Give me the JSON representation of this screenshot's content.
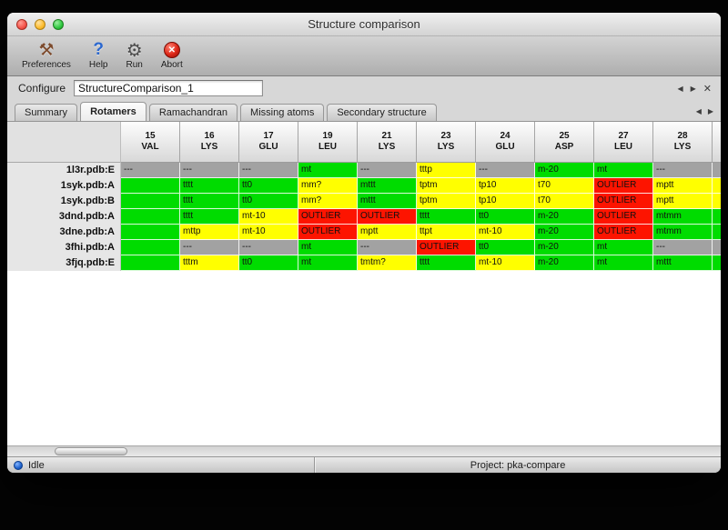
{
  "window": {
    "title": "Structure comparison"
  },
  "toolbar": {
    "items": [
      {
        "label": "Preferences",
        "glyph": "⚒"
      },
      {
        "label": "Help",
        "glyph": "?"
      },
      {
        "label": "Run",
        "glyph": "⚙"
      },
      {
        "label": "Abort",
        "glyph": "✕"
      }
    ]
  },
  "configure": {
    "label": "Configure",
    "value": "StructureComparison_1"
  },
  "nav": {
    "prev": "◀",
    "next": "▶",
    "close": "✕"
  },
  "tabs": {
    "active": "Rotamers",
    "items": [
      "Summary",
      "Rotamers",
      "Ramachandran",
      "Missing atoms",
      "Secondary structure"
    ]
  },
  "colors": {
    "green": "#00dc00",
    "yellow": "#ffff00",
    "red": "#fd1400",
    "gray": "#a2a2a2"
  },
  "table": {
    "columns": [
      {
        "num": "15",
        "res": "VAL"
      },
      {
        "num": "16",
        "res": "LYS"
      },
      {
        "num": "17",
        "res": "GLU"
      },
      {
        "num": "19",
        "res": "LEU"
      },
      {
        "num": "21",
        "res": "LYS"
      },
      {
        "num": "23",
        "res": "LYS"
      },
      {
        "num": "24",
        "res": "GLU"
      },
      {
        "num": "25",
        "res": "ASP"
      },
      {
        "num": "27",
        "res": "LEU"
      },
      {
        "num": "28",
        "res": "LYS"
      },
      {
        "num": "",
        "res": ""
      }
    ],
    "rows": [
      {
        "label": "1l3r.pdb:E",
        "cells": [
          {
            "t": "---",
            "c": "gray"
          },
          {
            "t": "---",
            "c": "gray"
          },
          {
            "t": "---",
            "c": "gray"
          },
          {
            "t": "mt",
            "c": "green"
          },
          {
            "t": "---",
            "c": "gray"
          },
          {
            "t": "tttp",
            "c": "yellow"
          },
          {
            "t": "---",
            "c": "gray"
          },
          {
            "t": "m-20",
            "c": "green"
          },
          {
            "t": "mt",
            "c": "green"
          },
          {
            "t": "---",
            "c": "gray"
          },
          {
            "t": "",
            "c": "gray"
          }
        ]
      },
      {
        "label": "1syk.pdb:A",
        "cells": [
          {
            "t": "",
            "c": "green"
          },
          {
            "t": "tttt",
            "c": "green"
          },
          {
            "t": "tt0",
            "c": "green"
          },
          {
            "t": "mm?",
            "c": "yellow"
          },
          {
            "t": "mttt",
            "c": "green"
          },
          {
            "t": "tptm",
            "c": "yellow"
          },
          {
            "t": "tp10",
            "c": "yellow"
          },
          {
            "t": "t70",
            "c": "yellow"
          },
          {
            "t": "OUTLIER",
            "c": "red"
          },
          {
            "t": "mptt",
            "c": "yellow"
          },
          {
            "t": "",
            "c": "yellow"
          }
        ]
      },
      {
        "label": "1syk.pdb:B",
        "cells": [
          {
            "t": "",
            "c": "green"
          },
          {
            "t": "tttt",
            "c": "green"
          },
          {
            "t": "tt0",
            "c": "green"
          },
          {
            "t": "mm?",
            "c": "yellow"
          },
          {
            "t": "mttt",
            "c": "green"
          },
          {
            "t": "tptm",
            "c": "yellow"
          },
          {
            "t": "tp10",
            "c": "yellow"
          },
          {
            "t": "t70",
            "c": "yellow"
          },
          {
            "t": "OUTLIER",
            "c": "red"
          },
          {
            "t": "mptt",
            "c": "yellow"
          },
          {
            "t": "",
            "c": "yellow"
          }
        ]
      },
      {
        "label": "3dnd.pdb:A",
        "cells": [
          {
            "t": "",
            "c": "green"
          },
          {
            "t": "tttt",
            "c": "green"
          },
          {
            "t": "mt-10",
            "c": "yellow"
          },
          {
            "t": "OUTLIER",
            "c": "red"
          },
          {
            "t": "OUTLIER",
            "c": "red"
          },
          {
            "t": "tttt",
            "c": "green"
          },
          {
            "t": "tt0",
            "c": "green"
          },
          {
            "t": "m-20",
            "c": "green"
          },
          {
            "t": "OUTLIER",
            "c": "red"
          },
          {
            "t": "mtmm",
            "c": "green"
          },
          {
            "t": "",
            "c": "green"
          }
        ]
      },
      {
        "label": "3dne.pdb:A",
        "cells": [
          {
            "t": "",
            "c": "green"
          },
          {
            "t": "mttp",
            "c": "yellow"
          },
          {
            "t": "mt-10",
            "c": "yellow"
          },
          {
            "t": "OUTLIER",
            "c": "red"
          },
          {
            "t": "mptt",
            "c": "yellow"
          },
          {
            "t": "ttpt",
            "c": "yellow"
          },
          {
            "t": "mt-10",
            "c": "yellow"
          },
          {
            "t": "m-20",
            "c": "green"
          },
          {
            "t": "OUTLIER",
            "c": "red"
          },
          {
            "t": "mtmm",
            "c": "green"
          },
          {
            "t": "",
            "c": "green"
          }
        ]
      },
      {
        "label": "3fhi.pdb:A",
        "cells": [
          {
            "t": "",
            "c": "green"
          },
          {
            "t": "---",
            "c": "gray"
          },
          {
            "t": "---",
            "c": "gray"
          },
          {
            "t": "mt",
            "c": "green"
          },
          {
            "t": "---",
            "c": "gray"
          },
          {
            "t": "OUTLIER",
            "c": "red"
          },
          {
            "t": "tt0",
            "c": "green"
          },
          {
            "t": "m-20",
            "c": "green"
          },
          {
            "t": "mt",
            "c": "green"
          },
          {
            "t": "---",
            "c": "gray"
          },
          {
            "t": "",
            "c": "gray"
          }
        ]
      },
      {
        "label": "3fjq.pdb:E",
        "cells": [
          {
            "t": "",
            "c": "green"
          },
          {
            "t": "tttm",
            "c": "yellow"
          },
          {
            "t": "tt0",
            "c": "green"
          },
          {
            "t": "mt",
            "c": "green"
          },
          {
            "t": "tmtm?",
            "c": "yellow"
          },
          {
            "t": "tttt",
            "c": "green"
          },
          {
            "t": "mt-10",
            "c": "yellow"
          },
          {
            "t": "m-20",
            "c": "green"
          },
          {
            "t": "mt",
            "c": "green"
          },
          {
            "t": "mttt",
            "c": "green"
          },
          {
            "t": "",
            "c": "green"
          }
        ]
      }
    ]
  },
  "status": {
    "state": "Idle",
    "project": "Project: pka-compare"
  }
}
